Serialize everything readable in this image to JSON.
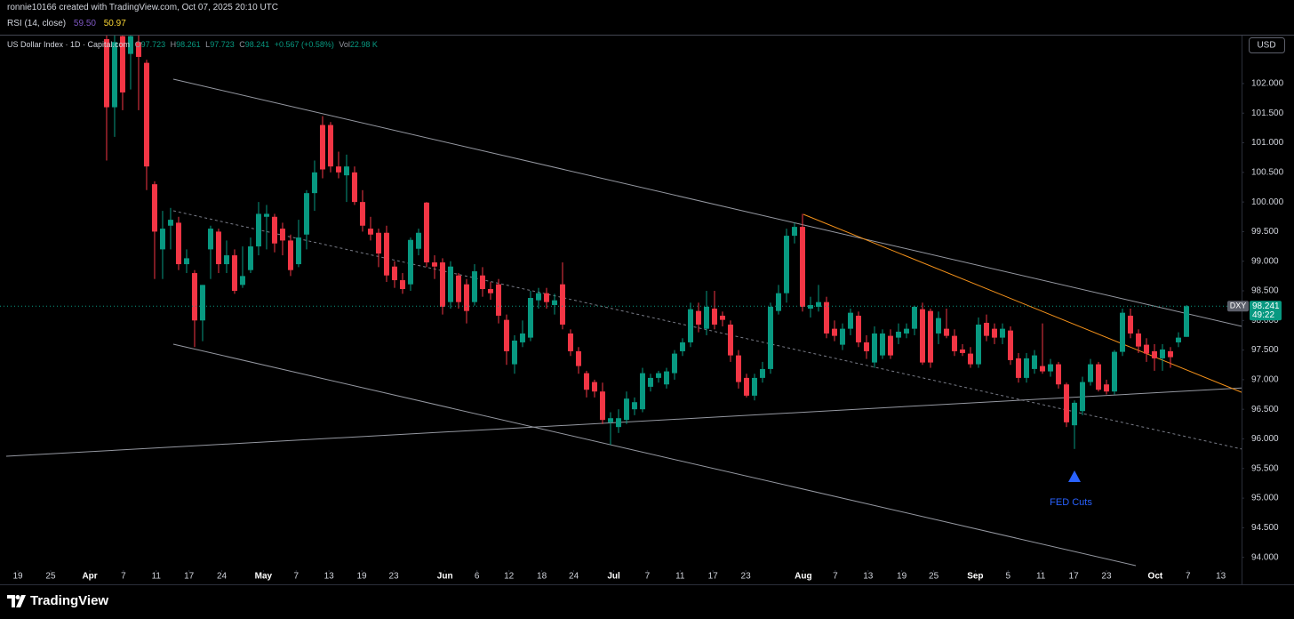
{
  "header": {
    "attribution": "ronnie10166 created with TradingView.com, Oct 07, 2025 20:10 UTC",
    "rsi": {
      "label": "RSI (14, close)",
      "values": [
        "59.50",
        "50.97"
      ]
    }
  },
  "footer": {
    "brand": "TradingView"
  },
  "chart_data": {
    "type": "candlestick",
    "legend": {
      "name": "US Dollar Index · 1D · Capital.com",
      "o_label": "O",
      "open": 97.723,
      "h_label": "H",
      "high": 98.261,
      "l_label": "L",
      "low": 97.723,
      "c_label": "C",
      "close": 98.241,
      "change": "+0.567 (+0.58%)",
      "vol_label": "Vol",
      "volume": "22.98 K"
    },
    "currency": "USD",
    "symbol": "DXY",
    "last_price": 98.241,
    "countdown": "49:22",
    "annotation": "FED Cuts",
    "colors": {
      "up": "#089981",
      "down": "#f23645"
    },
    "ylim": [
      93.8,
      102.81
    ],
    "yticks": [
      {
        "value": 94,
        "label": "94.000"
      },
      {
        "value": 94.5,
        "label": "94.500"
      },
      {
        "value": 95,
        "label": "95.000"
      },
      {
        "value": 95.5,
        "label": "95.500"
      },
      {
        "value": 96,
        "label": "96.000"
      },
      {
        "value": 96.5,
        "label": "96.500"
      },
      {
        "value": 97,
        "label": "97.000"
      },
      {
        "value": 97.5,
        "label": "97.500"
      },
      {
        "value": 98,
        "label": "98.000"
      },
      {
        "value": 98.5,
        "label": "98.500"
      },
      {
        "value": 99,
        "label": "99.000"
      },
      {
        "value": 99.5,
        "label": "99.500"
      },
      {
        "value": 100,
        "label": "100.000"
      },
      {
        "value": 100.5,
        "label": "100.500"
      },
      {
        "value": 101,
        "label": "101.000"
      },
      {
        "value": 101.5,
        "label": "101.500"
      },
      {
        "value": 102,
        "label": "102.000"
      }
    ],
    "xlim": [
      -13.33,
      141.89
    ],
    "xticks": [
      {
        "value": -11.1,
        "label": "19"
      },
      {
        "value": -7,
        "label": "25"
      },
      {
        "value": -2.1,
        "label": "Apr"
      },
      {
        "value": 2.1,
        "label": "7"
      },
      {
        "value": 6.2,
        "label": "11"
      },
      {
        "value": 10.3,
        "label": "17"
      },
      {
        "value": 14.4,
        "label": "24"
      },
      {
        "value": 19.6,
        "label": "May"
      },
      {
        "value": 23.7,
        "label": "7"
      },
      {
        "value": 27.8,
        "label": "13"
      },
      {
        "value": 31.9,
        "label": "19"
      },
      {
        "value": 35.9,
        "label": "23"
      },
      {
        "value": 42.3,
        "label": "Jun"
      },
      {
        "value": 46.3,
        "label": "6"
      },
      {
        "value": 50.3,
        "label": "12"
      },
      {
        "value": 54.4,
        "label": "18"
      },
      {
        "value": 58.4,
        "label": "24"
      },
      {
        "value": 63.4,
        "label": "Jul"
      },
      {
        "value": 67.6,
        "label": "7"
      },
      {
        "value": 71.7,
        "label": "11"
      },
      {
        "value": 75.8,
        "label": "17"
      },
      {
        "value": 79.9,
        "label": "23"
      },
      {
        "value": 87.1,
        "label": "Aug"
      },
      {
        "value": 91.1,
        "label": "7"
      },
      {
        "value": 95.2,
        "label": "13"
      },
      {
        "value": 99.4,
        "label": "19"
      },
      {
        "value": 103.4,
        "label": "25"
      },
      {
        "value": 108.6,
        "label": "Sep"
      },
      {
        "value": 112.7,
        "label": "5"
      },
      {
        "value": 116.8,
        "label": "11"
      },
      {
        "value": 120.9,
        "label": "17"
      },
      {
        "value": 125,
        "label": "23"
      },
      {
        "value": 131.1,
        "label": "Oct"
      },
      {
        "value": 135.2,
        "label": "7"
      },
      {
        "value": 139.3,
        "label": "13"
      }
    ],
    "ohlc": [
      [
        102.75,
        102.85,
        100.7,
        101.6
      ],
      [
        101.6,
        102.85,
        101.1,
        102.7
      ],
      [
        102.8,
        102.85,
        101.55,
        101.85
      ],
      [
        102.5,
        102.85,
        101.9,
        102.8
      ],
      [
        102.7,
        102.85,
        101.55,
        102.45
      ],
      [
        102.35,
        102.4,
        100.2,
        100.6
      ],
      [
        100.3,
        100.35,
        98.7,
        99.5
      ],
      [
        99.2,
        99.85,
        98.7,
        99.55
      ],
      [
        99.6,
        99.9,
        99.2,
        99.7
      ],
      [
        99.65,
        99.75,
        98.85,
        98.95
      ],
      [
        98.95,
        99.2,
        98.8,
        99.05
      ],
      [
        98.8,
        98.85,
        97.55,
        98.0
      ],
      [
        98.0,
        98.6,
        97.65,
        98.6
      ],
      [
        99.2,
        99.6,
        98.7,
        99.55
      ],
      [
        99.5,
        99.55,
        98.8,
        98.95
      ],
      [
        98.95,
        99.35,
        98.8,
        99.1
      ],
      [
        99.1,
        99.2,
        98.45,
        98.5
      ],
      [
        98.6,
        99.25,
        98.55,
        98.75
      ],
      [
        98.85,
        99.4,
        98.8,
        99.25
      ],
      [
        99.25,
        100.0,
        99.1,
        99.8
      ],
      [
        99.75,
        99.95,
        99.2,
        99.8
      ],
      [
        99.75,
        99.8,
        99.15,
        99.3
      ],
      [
        99.55,
        99.65,
        99.1,
        99.35
      ],
      [
        99.35,
        99.45,
        98.75,
        98.85
      ],
      [
        98.95,
        99.7,
        98.9,
        99.4
      ],
      [
        99.45,
        100.2,
        99.2,
        100.15
      ],
      [
        100.15,
        100.7,
        99.85,
        100.5
      ],
      [
        101.3,
        101.45,
        100.4,
        100.55
      ],
      [
        101.3,
        101.35,
        100.5,
        100.6
      ],
      [
        100.6,
        100.85,
        100.4,
        100.5
      ],
      [
        100.45,
        100.8,
        100.0,
        100.6
      ],
      [
        100.5,
        100.6,
        99.95,
        100.0
      ],
      [
        100.0,
        100.2,
        99.5,
        99.6
      ],
      [
        99.55,
        99.75,
        99.35,
        99.45
      ],
      [
        99.48,
        99.55,
        98.9,
        99.13
      ],
      [
        99.48,
        99.6,
        98.65,
        98.76
      ],
      [
        98.91,
        99.0,
        98.55,
        98.68
      ],
      [
        98.68,
        98.8,
        98.45,
        98.53
      ],
      [
        98.61,
        99.4,
        98.5,
        99.36
      ],
      [
        99.21,
        99.55,
        99.1,
        99.48
      ],
      [
        99.99,
        100.0,
        98.9,
        98.98
      ],
      [
        98.98,
        99.1,
        98.7,
        98.91
      ],
      [
        98.98,
        99.05,
        98.1,
        98.23
      ],
      [
        98.31,
        99.0,
        98.2,
        98.91
      ],
      [
        98.76,
        98.8,
        98.2,
        98.31
      ],
      [
        98.61,
        98.7,
        97.95,
        98.16
      ],
      [
        98.31,
        98.95,
        98.25,
        98.83
      ],
      [
        98.76,
        98.9,
        98.4,
        98.53
      ],
      [
        98.53,
        98.65,
        98.35,
        98.46
      ],
      [
        98.61,
        98.7,
        97.95,
        98.08
      ],
      [
        98.01,
        98.1,
        97.25,
        97.48
      ],
      [
        97.26,
        97.75,
        97.1,
        97.66
      ],
      [
        97.63,
        98.0,
        97.55,
        97.78
      ],
      [
        97.71,
        98.5,
        97.65,
        98.38
      ],
      [
        98.34,
        98.55,
        98.2,
        98.46
      ],
      [
        98.46,
        98.55,
        98.2,
        98.31
      ],
      [
        98.26,
        98.45,
        98.1,
        98.34
      ],
      [
        98.61,
        98.98,
        97.85,
        97.93
      ],
      [
        97.78,
        97.85,
        97.4,
        97.48
      ],
      [
        97.48,
        97.55,
        97.1,
        97.23
      ],
      [
        97.11,
        97.15,
        96.7,
        96.83
      ],
      [
        96.96,
        97.0,
        96.7,
        96.8
      ],
      [
        96.8,
        96.95,
        96.25,
        96.32
      ],
      [
        96.28,
        96.45,
        95.9,
        96.35
      ],
      [
        96.2,
        96.5,
        96.1,
        96.35
      ],
      [
        96.32,
        96.8,
        96.25,
        96.68
      ],
      [
        96.5,
        96.7,
        96.4,
        96.62
      ],
      [
        96.5,
        97.2,
        96.45,
        97.11
      ],
      [
        96.88,
        97.1,
        96.8,
        97.03
      ],
      [
        97.03,
        97.15,
        96.95,
        97.11
      ],
      [
        96.92,
        97.2,
        96.85,
        97.14
      ],
      [
        97.11,
        97.5,
        97.0,
        97.44
      ],
      [
        97.48,
        97.7,
        97.4,
        97.63
      ],
      [
        97.63,
        98.3,
        97.55,
        98.19
      ],
      [
        98.16,
        98.3,
        97.8,
        97.93
      ],
      [
        97.86,
        98.5,
        97.75,
        98.23
      ],
      [
        98.2,
        98.5,
        97.85,
        97.93
      ],
      [
        98.08,
        98.15,
        97.9,
        98.01
      ],
      [
        97.93,
        98.0,
        97.3,
        97.41
      ],
      [
        97.41,
        97.5,
        96.85,
        96.96
      ],
      [
        97.03,
        97.1,
        96.7,
        96.73
      ],
      [
        96.73,
        97.1,
        96.65,
        97.03
      ],
      [
        97.03,
        97.3,
        96.95,
        97.18
      ],
      [
        97.18,
        98.3,
        97.1,
        98.23
      ],
      [
        98.16,
        98.6,
        98.1,
        98.46
      ],
      [
        98.46,
        99.55,
        98.3,
        99.43
      ],
      [
        99.43,
        99.65,
        99.3,
        99.58
      ],
      [
        99.58,
        99.8,
        98.15,
        98.23
      ],
      [
        98.2,
        98.4,
        98.05,
        98.26
      ],
      [
        98.23,
        98.6,
        98.15,
        98.31
      ],
      [
        98.31,
        98.4,
        97.7,
        97.78
      ],
      [
        97.86,
        98.0,
        97.65,
        97.74
      ],
      [
        97.59,
        97.95,
        97.5,
        97.86
      ],
      [
        97.86,
        98.2,
        97.75,
        98.13
      ],
      [
        98.08,
        98.15,
        97.55,
        97.63
      ],
      [
        97.63,
        97.75,
        97.35,
        97.48
      ],
      [
        97.29,
        97.9,
        97.2,
        97.78
      ],
      [
        97.41,
        97.85,
        97.35,
        97.78
      ],
      [
        97.74,
        97.85,
        97.35,
        97.41
      ],
      [
        97.71,
        97.95,
        97.6,
        97.81
      ],
      [
        97.78,
        97.95,
        97.7,
        97.86
      ],
      [
        97.86,
        98.25,
        97.75,
        98.23
      ],
      [
        98.19,
        98.3,
        97.25,
        97.29
      ],
      [
        98.16,
        98.2,
        97.2,
        97.29
      ],
      [
        97.78,
        98.15,
        97.6,
        98.04
      ],
      [
        97.86,
        98.2,
        97.7,
        97.74
      ],
      [
        97.74,
        97.85,
        97.4,
        97.48
      ],
      [
        97.51,
        97.6,
        97.4,
        97.45
      ],
      [
        97.44,
        97.55,
        97.2,
        97.26
      ],
      [
        97.26,
        98.05,
        97.2,
        97.93
      ],
      [
        97.96,
        98.1,
        97.65,
        97.74
      ],
      [
        97.86,
        97.95,
        97.6,
        97.71
      ],
      [
        97.71,
        97.95,
        97.6,
        97.86
      ],
      [
        97.83,
        97.9,
        97.25,
        97.33
      ],
      [
        97.36,
        97.45,
        96.95,
        97.03
      ],
      [
        97.03,
        97.45,
        96.95,
        97.36
      ],
      [
        97.18,
        97.5,
        97.1,
        97.41
      ],
      [
        97.23,
        97.95,
        97.1,
        97.14
      ],
      [
        97.14,
        97.35,
        97.05,
        97.26
      ],
      [
        97.26,
        97.3,
        96.85,
        96.92
      ],
      [
        96.92,
        96.95,
        96.2,
        96.28
      ],
      [
        96.23,
        96.65,
        95.83,
        96.61
      ],
      [
        96.47,
        97.05,
        96.4,
        96.96
      ],
      [
        96.96,
        97.35,
        96.9,
        97.26
      ],
      [
        97.26,
        97.3,
        96.8,
        96.83
      ],
      [
        96.92,
        97.0,
        96.75,
        96.8
      ],
      [
        96.8,
        97.5,
        96.75,
        97.47
      ],
      [
        97.47,
        98.2,
        97.4,
        98.13
      ],
      [
        98.08,
        98.2,
        97.7,
        97.78
      ],
      [
        97.78,
        97.85,
        97.45,
        97.56
      ],
      [
        97.59,
        97.7,
        97.3,
        97.44
      ],
      [
        97.48,
        97.6,
        97.15,
        97.36
      ],
      [
        97.36,
        97.6,
        97.15,
        97.51
      ],
      [
        97.48,
        97.55,
        97.2,
        97.38
      ],
      [
        97.63,
        97.8,
        97.55,
        97.71
      ],
      [
        97.723,
        98.261,
        97.723,
        98.241
      ]
    ]
  }
}
